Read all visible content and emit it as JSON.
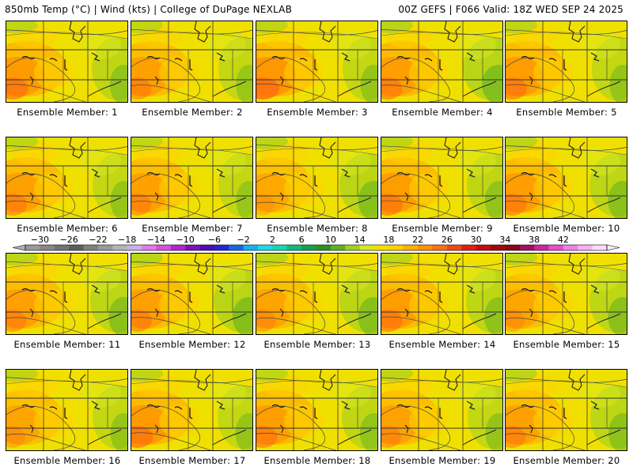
{
  "header": {
    "left": "850mb Temp (°C) | Wind (kts) | College of DuPage NEXLAB",
    "right": "00Z GEFS | F066 Valid: 18Z WED SEP 24 2025"
  },
  "members": [
    {
      "label": "Ensemble Member: 1",
      "warm": 0.75,
      "cool": 0.35
    },
    {
      "label": "Ensemble Member: 2",
      "warm": 0.55,
      "cool": 0.25
    },
    {
      "label": "Ensemble Member: 3",
      "warm": 0.9,
      "cool": 0.3
    },
    {
      "label": "Ensemble Member: 4",
      "warm": 0.65,
      "cool": 0.6
    },
    {
      "label": "Ensemble Member: 5",
      "warm": 0.7,
      "cool": 0.3
    },
    {
      "label": "Ensemble Member: 6",
      "warm": 0.6,
      "cool": 0.3
    },
    {
      "label": "Ensemble Member: 7",
      "warm": 0.55,
      "cool": 0.25
    },
    {
      "label": "Ensemble Member: 8",
      "warm": 0.3,
      "cool": 0.5
    },
    {
      "label": "Ensemble Member: 9",
      "warm": 0.7,
      "cool": 0.35
    },
    {
      "label": "Ensemble Member: 10",
      "warm": 0.65,
      "cool": 0.45
    },
    {
      "label": "Ensemble Member: 11",
      "warm": 0.55,
      "cool": 0.45
    },
    {
      "label": "Ensemble Member: 12",
      "warm": 0.6,
      "cool": 0.55
    },
    {
      "label": "Ensemble Member: 13",
      "warm": 0.45,
      "cool": 0.5
    },
    {
      "label": "Ensemble Member: 14",
      "warm": 0.7,
      "cool": 0.4
    },
    {
      "label": "Ensemble Member: 15",
      "warm": 0.4,
      "cool": 0.45
    },
    {
      "label": "Ensemble Member: 16",
      "warm": 0.4,
      "cool": 0.3
    },
    {
      "label": "Ensemble Member: 17",
      "warm": 0.75,
      "cool": 0.3
    },
    {
      "label": "Ensemble Member: 18",
      "warm": 0.65,
      "cool": 0.35
    },
    {
      "label": "Ensemble Member: 19",
      "warm": 0.5,
      "cool": 0.3
    },
    {
      "label": "Ensemble Member: 20",
      "warm": 0.55,
      "cool": 0.4
    }
  ],
  "colorbar": {
    "unit": "°C",
    "labels": [
      "−30",
      "−26",
      "−22",
      "−18",
      "−14",
      "−10",
      "−6",
      "−2",
      "2",
      "6",
      "10",
      "14",
      "18",
      "22",
      "26",
      "30",
      "34",
      "38",
      "42"
    ],
    "colors": [
      "#9a9a9a",
      "#878787",
      "#727272",
      "#5e5e5e",
      "#808080",
      "#9a9a9a",
      "#b4b4b4",
      "#c9b0e6",
      "#e07ae6",
      "#d94fd9",
      "#b026c9",
      "#7a14b8",
      "#4d0fb0",
      "#2626d0",
      "#1a66e0",
      "#1ab0f0",
      "#20d8e0",
      "#1ad6a8",
      "#14b87a",
      "#1aa04a",
      "#2e8f20",
      "#5fb020",
      "#a0d020",
      "#d8e820",
      "#f0e000",
      "#ffd000",
      "#ffb000",
      "#ff9000",
      "#ff6e10",
      "#f04a10",
      "#e02010",
      "#c80a10",
      "#a00810",
      "#800818",
      "#a01060",
      "#c82a9a",
      "#e650c8",
      "#f080e8",
      "#f8b0f0",
      "#ffd8fa"
    ]
  }
}
